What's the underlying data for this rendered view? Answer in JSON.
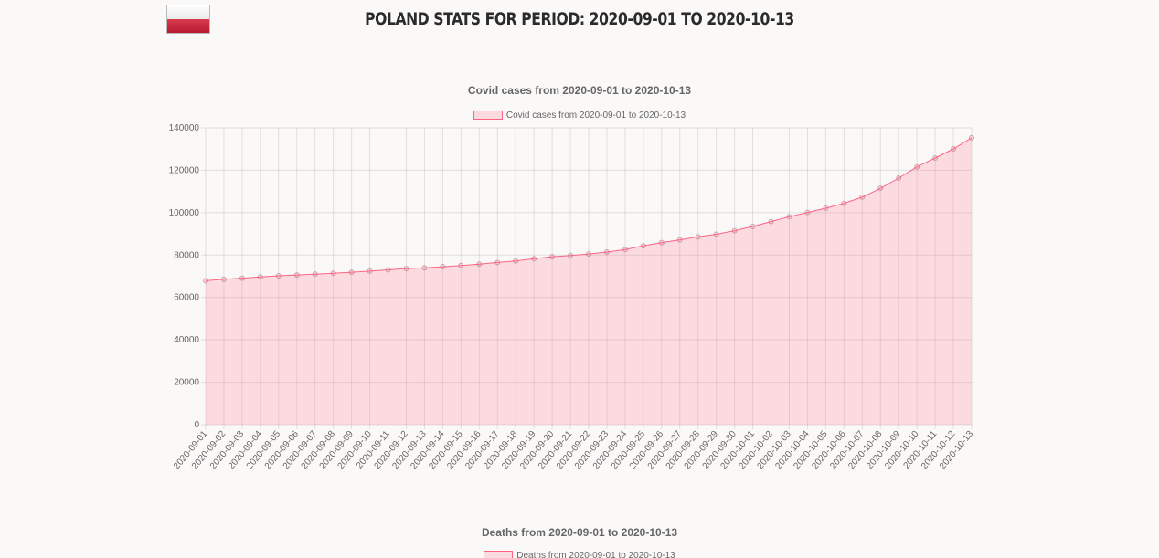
{
  "page": {
    "title": "Poland stats for period: 2020-09-01 to 2020-10-13",
    "flag_icon": "poland-flag-icon",
    "flag_colors": [
      "#ffffff",
      "#c8223a"
    ]
  },
  "colors": {
    "series_line": "#ff6384",
    "series_fill": "rgba(255,99,132,0.2)",
    "grid": "rgba(0,0,0,0.1)",
    "text": "#666666"
  },
  "chart_data": [
    {
      "type": "area",
      "title": "Covid cases  from 2020-09-01 to 2020-10-13",
      "legend": [
        "Covid cases  from 2020-09-01 to 2020-10-13"
      ],
      "legend_position": "top",
      "grid": true,
      "ylim": [
        0,
        140000
      ],
      "yticks": [
        0,
        20000,
        40000,
        60000,
        80000,
        100000,
        120000,
        140000
      ],
      "x": [
        "2020-09-01",
        "2020-09-02",
        "2020-09-03",
        "2020-09-04",
        "2020-09-05",
        "2020-09-06",
        "2020-09-07",
        "2020-09-08",
        "2020-09-09",
        "2020-09-10",
        "2020-09-11",
        "2020-09-12",
        "2020-09-13",
        "2020-09-14",
        "2020-09-15",
        "2020-09-16",
        "2020-09-17",
        "2020-09-18",
        "2020-09-19",
        "2020-09-20",
        "2020-09-21",
        "2020-09-22",
        "2020-09-23",
        "2020-09-24",
        "2020-09-25",
        "2020-09-26",
        "2020-09-27",
        "2020-09-28",
        "2020-09-29",
        "2020-09-30",
        "2020-10-01",
        "2020-10-02",
        "2020-10-03",
        "2020-10-04",
        "2020-10-05",
        "2020-10-06",
        "2020-10-07",
        "2020-10-08",
        "2020-10-09",
        "2020-10-10",
        "2020-10-11",
        "2020-10-12",
        "2020-10-13"
      ],
      "series": [
        {
          "name": "Covid cases  from 2020-09-01 to 2020-10-13",
          "values": [
            67900,
            68600,
            69100,
            69700,
            70200,
            70600,
            71000,
            71400,
            71900,
            72400,
            73000,
            73600,
            74000,
            74500,
            75100,
            75700,
            76500,
            77200,
            78300,
            79200,
            79800,
            80500,
            81400,
            82600,
            84400,
            85900,
            87200,
            88600,
            89800,
            91500,
            93500,
            95800,
            98100,
            100100,
            102100,
            104400,
            107300,
            111500,
            116300,
            121600,
            125800,
            130100,
            135300
          ]
        }
      ]
    },
    {
      "type": "area",
      "title": "Deaths  from 2020-09-01 to 2020-10-13",
      "legend": [
        "Deaths  from 2020-09-01 to 2020-10-13"
      ],
      "legend_position": "top"
    }
  ]
}
